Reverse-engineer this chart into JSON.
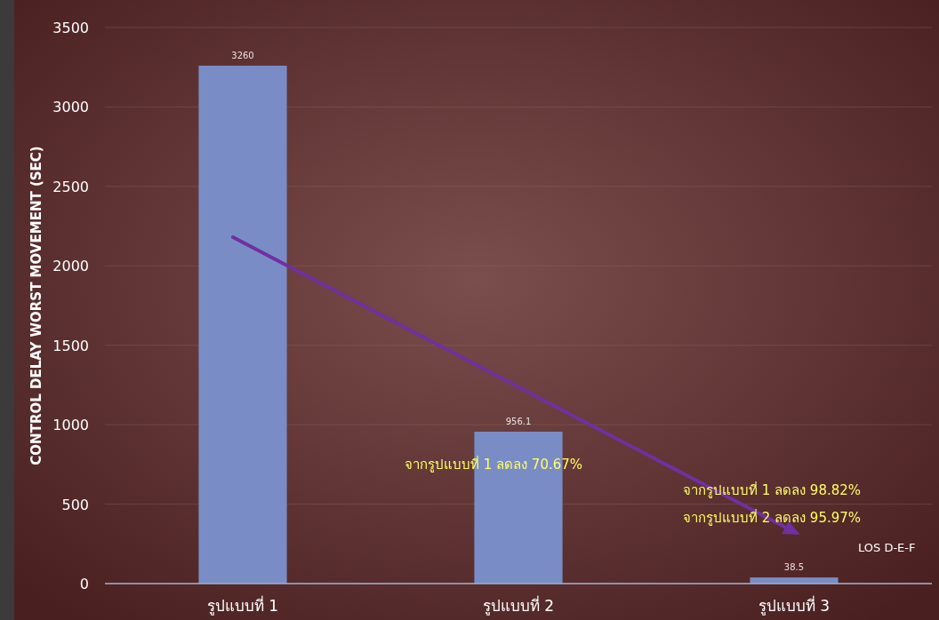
{
  "chart_data": {
    "type": "bar",
    "ylabel": "CONTROL DELAY WORST MOVEMENT (SEC)",
    "categories": [
      "รูปแบบที่ 1",
      "รูปแบบที่ 2",
      "รูปแบบที่ 3"
    ],
    "values": [
      3260,
      956.1,
      38.5
    ],
    "color": "#7a8cc6",
    "ylim": [
      0,
      3500
    ],
    "yticks": [
      0,
      500,
      1000,
      1500,
      2000,
      2500,
      3000,
      3500
    ],
    "grid": "y",
    "data_labels": true,
    "annotations": [
      "จากรูปแบบที่ 1 ลดลง 70.67%",
      "จากรูปแบบที่ 1 ลดลง 98.82%",
      "จากรูปแบบที่ 2 ลดลง 95.97%",
      "LOS D-E-F"
    ]
  }
}
